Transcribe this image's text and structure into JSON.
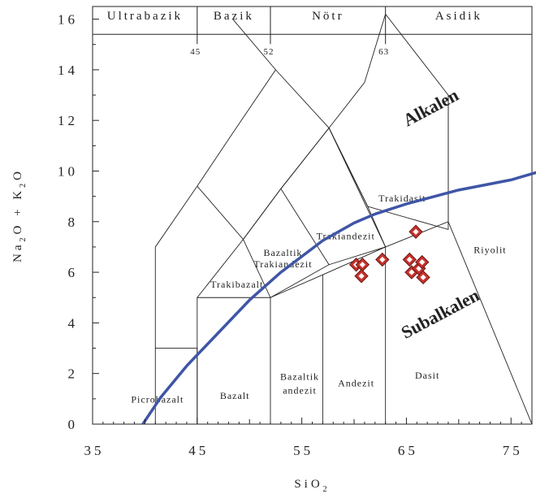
{
  "chart_data": {
    "type": "scatter",
    "title": "",
    "xlabel": "SiO",
    "xlabel_sub": "2",
    "ylabel_parts": [
      "Na",
      "2",
      "O + K",
      "2",
      "O"
    ],
    "xlim": [
      35,
      77
    ],
    "ylim": [
      0,
      16.5
    ],
    "x_ticks": [
      35,
      45,
      55,
      65,
      75
    ],
    "y_ticks": [
      0,
      2,
      4,
      6,
      8,
      10,
      12,
      14,
      16
    ],
    "grid": false,
    "bands": [
      {
        "name": "Ultrabazik",
        "from": 35,
        "to": 45
      },
      {
        "name": "Bazik",
        "from": 45,
        "to": 52
      },
      {
        "name": "Nötr",
        "from": 52,
        "to": 63
      },
      {
        "name": "Asidik",
        "from": 63,
        "to": 77
      }
    ],
    "band_markers": [
      "45",
      "52",
      "63"
    ],
    "fields": [
      {
        "name": "Picrobazalt",
        "x": 41.2,
        "y": 0.85
      },
      {
        "name": "Bazalt",
        "x": 48.6,
        "y": 1.0
      },
      {
        "name": "Bazaltik",
        "x": 54.8,
        "y": 1.75
      },
      {
        "name": "andezit",
        "x": 54.8,
        "y": 1.2
      },
      {
        "name": "Andezit",
        "x": 60.2,
        "y": 1.5
      },
      {
        "name": "Dasit",
        "x": 67.0,
        "y": 1.8
      },
      {
        "name": "Trakibazalt",
        "x": 48.8,
        "y": 5.4
      },
      {
        "name": "Bazaltik",
        "x": 53.2,
        "y": 6.65
      },
      {
        "name": "Trakiandezit",
        "x": 53.2,
        "y": 6.2
      },
      {
        "name": "Trakiandezit",
        "x": 59.2,
        "y": 7.3
      },
      {
        "name": "Trakidasit",
        "x": 64.6,
        "y": 8.8
      },
      {
        "name": "Riyolit",
        "x": 73.0,
        "y": 6.75
      }
    ],
    "series": [
      {
        "name": "Alkalen",
        "label": "Alkalen",
        "curve": [
          [
            39.8,
            0
          ],
          [
            41.5,
            1.05
          ],
          [
            44.0,
            2.3
          ],
          [
            47.0,
            3.6
          ],
          [
            50.0,
            4.9
          ],
          [
            53.0,
            6.0
          ],
          [
            57.0,
            7.25
          ],
          [
            60.0,
            7.95
          ],
          [
            62.0,
            8.3
          ],
          [
            65.0,
            8.7
          ],
          [
            70.0,
            9.25
          ],
          [
            75.0,
            9.65
          ],
          [
            77.5,
            9.95
          ]
        ],
        "color": "#3f55a6"
      },
      {
        "name": "Subalkalen",
        "label": "Subalkalen",
        "points": [
          {
            "x": 60.2,
            "y": 6.3
          },
          {
            "x": 60.8,
            "y": 6.3
          },
          {
            "x": 60.7,
            "y": 5.85
          },
          {
            "x": 62.7,
            "y": 6.5
          },
          {
            "x": 65.9,
            "y": 7.6
          },
          {
            "x": 65.3,
            "y": 6.5
          },
          {
            "x": 65.5,
            "y": 6.0
          },
          {
            "x": 66.2,
            "y": 6.15
          },
          {
            "x": 66.5,
            "y": 6.4
          },
          {
            "x": 66.6,
            "y": 5.8
          }
        ],
        "fill": "#c8312b",
        "stroke": "#6b1a16"
      }
    ],
    "series_label_positions": {
      "Alkalen": {
        "x": 67.6,
        "y": 12.3,
        "rotate": -28
      },
      "Subalkalen": {
        "x": 68.5,
        "y": 4.15,
        "rotate": -28
      }
    },
    "boundaries": [
      [
        [
          41,
          0
        ],
        [
          41,
          3
        ],
        [
          45,
          3
        ],
        [
          45,
          0
        ]
      ],
      [
        [
          41,
          3
        ],
        [
          41,
          7
        ],
        [
          45,
          9.4
        ],
        [
          48.4,
          11.5
        ],
        [
          52.5,
          14
        ],
        [
          48.4,
          16
        ]
      ],
      [
        [
          45,
          0
        ],
        [
          45,
          5
        ],
        [
          49.4,
          7.3
        ],
        [
          53,
          9.3
        ],
        [
          57.6,
          11.7
        ],
        [
          61,
          13.5
        ],
        [
          63,
          16.2
        ]
      ],
      [
        [
          52,
          0
        ],
        [
          52,
          5
        ],
        [
          57,
          5.9
        ],
        [
          63,
          7
        ],
        [
          69,
          8
        ],
        [
          77,
          0
        ]
      ],
      [
        [
          57,
          0
        ],
        [
          57,
          5.9
        ]
      ],
      [
        [
          63,
          0
        ],
        [
          63,
          7
        ]
      ],
      [
        [
          45,
          5
        ],
        [
          52,
          5
        ],
        [
          49.4,
          7.3
        ],
        [
          45,
          9.4
        ]
      ],
      [
        [
          52,
          5
        ],
        [
          57.6,
          6.3
        ],
        [
          53,
          9.3
        ],
        [
          49.4,
          7.3
        ]
      ],
      [
        [
          57.6,
          6.3
        ],
        [
          63,
          7
        ],
        [
          57.6,
          11.7
        ],
        [
          53,
          9.3
        ]
      ],
      [
        [
          52.5,
          14
        ],
        [
          57.6,
          11.7
        ],
        [
          61.3,
          8.6
        ],
        [
          63,
          7
        ]
      ],
      [
        [
          61.3,
          8.6
        ],
        [
          69,
          7.69
        ],
        [
          69,
          13
        ],
        [
          63,
          16.2
        ]
      ],
      [
        [
          69,
          8
        ],
        [
          69,
          13
        ]
      ],
      [
        [
          57.6,
          11.7
        ],
        [
          61.3,
          8.6
        ]
      ]
    ]
  }
}
